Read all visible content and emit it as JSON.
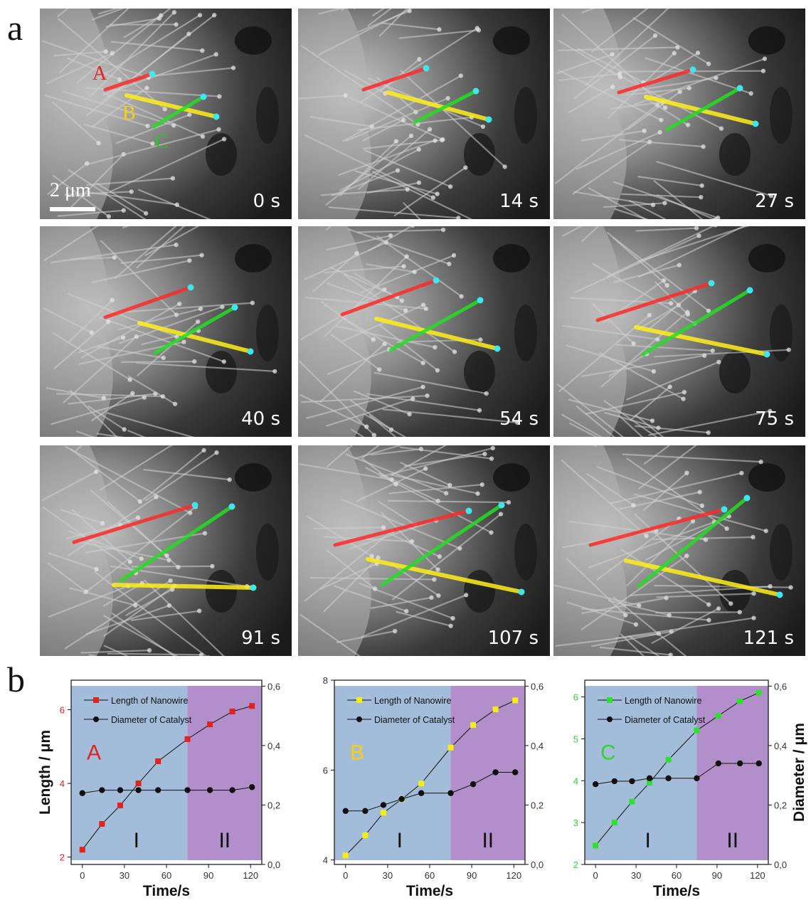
{
  "figure": {
    "panel_a_label": "a",
    "panel_b_label": "b",
    "scale_bar": "2 μm",
    "wire_labels": {
      "a": "A",
      "b": "B",
      "c": "C"
    },
    "frames": [
      {
        "label": "0 s"
      },
      {
        "label": "14 s"
      },
      {
        "label": "27 s"
      },
      {
        "label": "40 s"
      },
      {
        "label": "54 s"
      },
      {
        "label": "75 s"
      },
      {
        "label": "91 s"
      },
      {
        "label": "107 s"
      },
      {
        "label": "121 s"
      }
    ]
  },
  "chart_data": [
    {
      "type": "line",
      "panel_label": "A",
      "panel_label_color": "#e0231f",
      "xlabel": "Time/s",
      "ylabel": "Length / μm",
      "y2label": "",
      "xlim": [
        -8,
        128
      ],
      "xticks": [
        "0",
        "30",
        "60",
        "90",
        "120"
      ],
      "ylim": [
        1.8,
        6.8
      ],
      "yticks": [
        "2",
        "4",
        "6"
      ],
      "ytick_color": "#e0231f",
      "y2lim": [
        0.0,
        0.62
      ],
      "y2ticks": [
        "0,0",
        "0,2",
        "0,4",
        "0,6"
      ],
      "regions": [
        {
          "label": "I",
          "from": -8,
          "to": 75,
          "color": "#a3bcd9"
        },
        {
          "label": "II",
          "from": 75,
          "to": 128,
          "color": "#b28fca"
        }
      ],
      "series": [
        {
          "name": "Length of Nanowire",
          "color": "#e0231f",
          "marker": "square",
          "axis": "left",
          "x": [
            0,
            14,
            27,
            40,
            54,
            75,
            91,
            107,
            121
          ],
          "y": [
            2.2,
            2.9,
            3.4,
            4.0,
            4.6,
            5.2,
            5.6,
            5.95,
            6.1
          ]
        },
        {
          "name": "Diameter of Catalyst",
          "color": "#111111",
          "marker": "circle",
          "axis": "right",
          "x": [
            0,
            14,
            27,
            40,
            54,
            75,
            91,
            107,
            121
          ],
          "y": [
            0.24,
            0.25,
            0.25,
            0.25,
            0.25,
            0.25,
            0.25,
            0.25,
            0.26
          ]
        }
      ]
    },
    {
      "type": "line",
      "panel_label": "B",
      "panel_label_color": "#f5cf10",
      "xlabel": "Time/s",
      "ylabel": "",
      "y2label": "",
      "xlim": [
        -8,
        128
      ],
      "xticks": [
        "0",
        "30",
        "60",
        "90",
        "120"
      ],
      "ylim": [
        3.9,
        8.0
      ],
      "yticks": [
        "4",
        "6",
        "8"
      ],
      "ytick_color": "#333333",
      "y2lim": [
        0.0,
        0.62
      ],
      "y2ticks": [
        "0,0",
        "0,2",
        "0,4",
        "0,6"
      ],
      "regions": [
        {
          "label": "I",
          "from": -8,
          "to": 75,
          "color": "#a3bcd9"
        },
        {
          "label": "II",
          "from": 75,
          "to": 128,
          "color": "#b28fca"
        }
      ],
      "series": [
        {
          "name": "Length of Nanowire",
          "color": "#f5ee10",
          "marker": "square",
          "axis": "left",
          "x": [
            0,
            14,
            27,
            40,
            54,
            75,
            91,
            107,
            121
          ],
          "y": [
            4.1,
            4.55,
            5.05,
            5.35,
            5.7,
            6.5,
            7.0,
            7.35,
            7.55
          ]
        },
        {
          "name": "Diameter of Catalyst",
          "color": "#111111",
          "marker": "circle",
          "axis": "right",
          "x": [
            0,
            14,
            27,
            40,
            54,
            75,
            91,
            107,
            121
          ],
          "y": [
            0.18,
            0.18,
            0.2,
            0.22,
            0.24,
            0.24,
            0.27,
            0.31,
            0.31
          ]
        }
      ]
    },
    {
      "type": "line",
      "panel_label": "C",
      "panel_label_color": "#2fd62f",
      "xlabel": "Time/s",
      "ylabel": "",
      "y2label": "Diameter / μm",
      "xlim": [
        -8,
        128
      ],
      "xticks": [
        "0",
        "30",
        "60",
        "90",
        "120"
      ],
      "ylim": [
        2.0,
        6.4
      ],
      "yticks": [
        "2",
        "3",
        "4",
        "5",
        "6"
      ],
      "ytick_color": "#2fd62f",
      "y2lim": [
        0.0,
        0.62
      ],
      "y2ticks": [
        "0,0",
        "0,2",
        "0,4",
        "0,6"
      ],
      "regions": [
        {
          "label": "I",
          "from": -8,
          "to": 75,
          "color": "#a3bcd9"
        },
        {
          "label": "II",
          "from": 75,
          "to": 128,
          "color": "#b28fca"
        }
      ],
      "series": [
        {
          "name": "Length of Nanowire",
          "color": "#2fe02f",
          "marker": "square",
          "axis": "left",
          "x": [
            0,
            14,
            27,
            40,
            54,
            75,
            91,
            107,
            121
          ],
          "y": [
            2.45,
            3.0,
            3.5,
            3.95,
            4.5,
            5.2,
            5.55,
            5.9,
            6.1
          ]
        },
        {
          "name": "Diameter of Catalyst",
          "color": "#111111",
          "marker": "circle",
          "axis": "right",
          "x": [
            0,
            14,
            27,
            40,
            54,
            75,
            91,
            107,
            121
          ],
          "y": [
            0.27,
            0.28,
            0.28,
            0.29,
            0.29,
            0.29,
            0.34,
            0.34,
            0.34
          ]
        }
      ]
    }
  ]
}
